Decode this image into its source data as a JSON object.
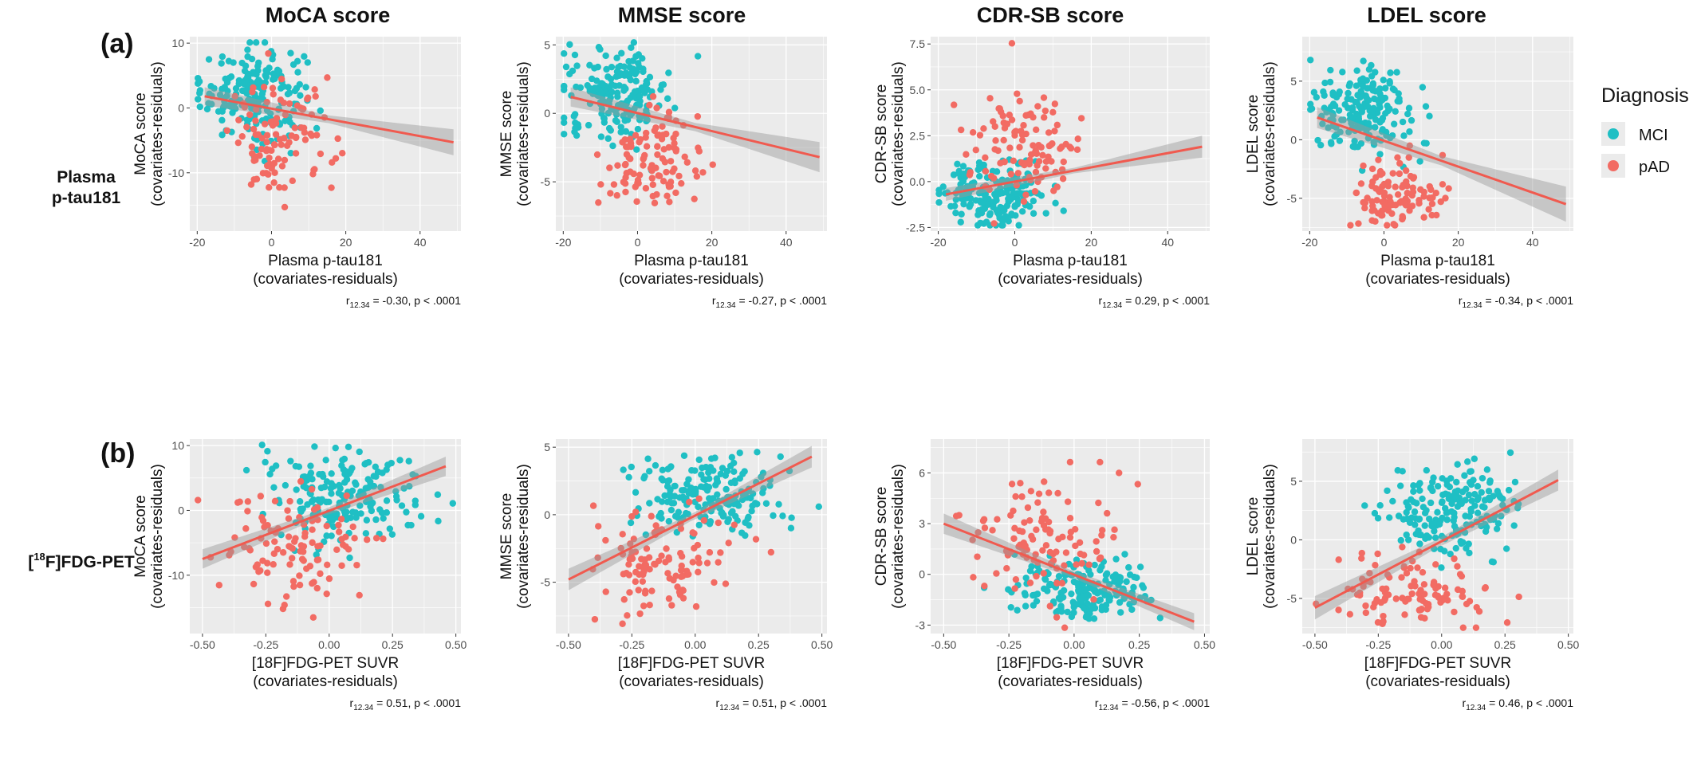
{
  "figure": {
    "panel_a": "(a)",
    "panel_b": "(b)",
    "row_labels": [
      {
        "line1": "Plasma",
        "line2": "p-tau181"
      },
      {
        "line1": "[",
        "sup": "18",
        "line2": "F]FDG-PET"
      }
    ],
    "columns": [
      "MoCA score",
      "MMSE score",
      "CDR-SB score",
      "LDEL score"
    ]
  },
  "legend": {
    "title": "Diagnosis",
    "items": [
      {
        "label": "MCI",
        "color": "#1fbfc4"
      },
      {
        "label": "pAD",
        "color": "#f26b63"
      }
    ]
  },
  "colors": {
    "MCI": "#1fbfc4",
    "pAD": "#f26b63",
    "panel_bg": "#ebebeb",
    "grid": "#ffffff",
    "fit_line": "#f05a4f",
    "ci_band": "#9a9a9a"
  },
  "chart_data": [
    {
      "type": "scatter",
      "row": 0,
      "col": 0,
      "xlabel": [
        "Plasma p-tau181",
        "(covariates-residuals)"
      ],
      "ylabel": [
        "MoCA score",
        "(covariates-residuals)"
      ],
      "xlim": [
        -22,
        51
      ],
      "ylim": [
        -19,
        11
      ],
      "xticks": [
        -20,
        0,
        20,
        40
      ],
      "xtick_labels": [
        "-20",
        "0",
        "20",
        "40"
      ],
      "yticks": [
        -10,
        0,
        10
      ],
      "ytick_labels": [
        "-10",
        "0",
        "10"
      ],
      "fit": {
        "x": [
          -18,
          49
        ],
        "y": [
          1.8,
          -5.3
        ]
      },
      "ci_widths": [
        1.4,
        0.6,
        2.0
      ],
      "stat": {
        "r_sub": "12.34",
        "text": " = -0.30, p < .0001"
      },
      "points": {
        "MCI": {
          "x_center": -5,
          "x_sd": 7,
          "y_center": 2.5,
          "y_sd": 3.5
        },
        "pAD": {
          "x_center": 3,
          "x_sd": 7,
          "y_center": -5,
          "y_sd": 4.5
        }
      }
    },
    {
      "type": "scatter",
      "row": 0,
      "col": 1,
      "xlabel": [
        "Plasma p-tau181",
        "(covariates-residuals)"
      ],
      "ylabel": [
        "MMSE score",
        "(covariates-residuals)"
      ],
      "xlim": [
        -22,
        51
      ],
      "ylim": [
        -8.6,
        5.6
      ],
      "xticks": [
        -20,
        0,
        20,
        40
      ],
      "xtick_labels": [
        "-20",
        "0",
        "20",
        "40"
      ],
      "yticks": [
        -5,
        0,
        5
      ],
      "ytick_labels": [
        "-5",
        "0",
        "5"
      ],
      "fit": {
        "x": [
          -18,
          49
        ],
        "y": [
          1.2,
          -3.2
        ]
      },
      "ci_widths": [
        0.7,
        0.3,
        1.1
      ],
      "stat": {
        "r_sub": "12.34",
        "text": " = -0.27, p < .0001"
      },
      "points": {
        "MCI": {
          "x_center": -5,
          "x_sd": 7,
          "y_center": 1.5,
          "y_sd": 1.6
        },
        "pAD": {
          "x_center": 3,
          "x_sd": 7,
          "y_center": -3.5,
          "y_sd": 2.0
        }
      }
    },
    {
      "type": "scatter",
      "row": 0,
      "col": 2,
      "xlabel": [
        "Plasma p-tau181",
        "(covariates-residuals)"
      ],
      "ylabel": [
        "CDR-SB score",
        "(covariates-residuals)"
      ],
      "xlim": [
        -22,
        51
      ],
      "ylim": [
        -2.7,
        7.9
      ],
      "xticks": [
        -20,
        0,
        20,
        40
      ],
      "xtick_labels": [
        "-20",
        "0",
        "20",
        "40"
      ],
      "yticks": [
        -2.5,
        0,
        2.5,
        5,
        7.5
      ],
      "ytick_labels": [
        "-2.5",
        "0.0",
        "2.5",
        "5.0",
        "7.5"
      ],
      "fit": {
        "x": [
          -18,
          49
        ],
        "y": [
          -0.7,
          1.9
        ]
      },
      "ci_widths": [
        0.35,
        0.15,
        0.6
      ],
      "stat": {
        "r_sub": "12.34",
        "text": " = 0.29, p < .0001"
      },
      "points": {
        "MCI": {
          "x_center": -5,
          "x_sd": 7,
          "y_center": -0.7,
          "y_sd": 0.9
        },
        "pAD": {
          "x_center": 3,
          "x_sd": 7,
          "y_center": 2.0,
          "y_sd": 1.6
        }
      }
    },
    {
      "type": "scatter",
      "row": 0,
      "col": 3,
      "xlabel": [
        "Plasma p-tau181",
        "(covariates-residuals)"
      ],
      "ylabel": [
        "LDEL score",
        "(covariates-residuals)"
      ],
      "xlim": [
        -22,
        51
      ],
      "ylim": [
        -7.8,
        8.8
      ],
      "xticks": [
        -20,
        0,
        20,
        40
      ],
      "xtick_labels": [
        "-20",
        "0",
        "20",
        "40"
      ],
      "yticks": [
        -5,
        0,
        5
      ],
      "ytick_labels": [
        "-5",
        "0",
        "5"
      ],
      "fit": {
        "x": [
          -18,
          49
        ],
        "y": [
          1.9,
          -5.5
        ]
      },
      "ci_widths": [
        0.9,
        0.4,
        1.5
      ],
      "stat": {
        "r_sub": "12.34",
        "text": " = -0.34, p < .0001"
      },
      "points": {
        "MCI": {
          "x_center": -5,
          "x_sd": 7,
          "y_center": 2.5,
          "y_sd": 2.0
        },
        "pAD": {
          "x_center": 3,
          "x_sd": 7,
          "y_center": -4.5,
          "y_sd": 1.5
        }
      }
    },
    {
      "type": "scatter",
      "row": 1,
      "col": 0,
      "xlabel": [
        "[18F]FDG-PET SUVR",
        "(covariates-residuals)"
      ],
      "ylabel": [
        "MoCA score",
        "(covariates-residuals)"
      ],
      "xlim": [
        -0.55,
        0.52
      ],
      "ylim": [
        -19,
        11
      ],
      "xticks": [
        -0.5,
        -0.25,
        0,
        0.25,
        0.5
      ],
      "xtick_labels": [
        "-0.50",
        "-0.25",
        "0.00",
        "0.25",
        "0.50"
      ],
      "yticks": [
        -10,
        0,
        10
      ],
      "ytick_labels": [
        "-10",
        "0",
        "10"
      ],
      "fit": {
        "x": [
          -0.5,
          0.46
        ],
        "y": [
          -7.5,
          6.8
        ]
      },
      "ci_widths": [
        1.5,
        0.5,
        1.5
      ],
      "stat": {
        "r_sub": "12.34",
        "text": " = 0.51, p < .0001"
      },
      "points": {
        "MCI": {
          "x_center": 0.05,
          "x_sd": 0.14,
          "y_center": 2.5,
          "y_sd": 3.5
        },
        "pAD": {
          "x_center": -0.12,
          "x_sd": 0.14,
          "y_center": -5,
          "y_sd": 4.5
        }
      }
    },
    {
      "type": "scatter",
      "row": 1,
      "col": 1,
      "xlabel": [
        "[18F]FDG-PET SUVR",
        "(covariates-residuals)"
      ],
      "ylabel": [
        "MMSE score",
        "(covariates-residuals)"
      ],
      "xlim": [
        -0.55,
        0.52
      ],
      "ylim": [
        -8.8,
        5.6
      ],
      "xticks": [
        -0.5,
        -0.25,
        0,
        0.25,
        0.5
      ],
      "xtick_labels": [
        "-0.50",
        "-0.25",
        "0.00",
        "0.25",
        "0.50"
      ],
      "yticks": [
        -5,
        0,
        5
      ],
      "ytick_labels": [
        "-5",
        "0",
        "5"
      ],
      "fit": {
        "x": [
          -0.5,
          0.46
        ],
        "y": [
          -4.8,
          4.3
        ]
      },
      "ci_widths": [
        0.8,
        0.25,
        0.8
      ],
      "stat": {
        "r_sub": "12.34",
        "text": " = 0.51, p < .0001"
      },
      "points": {
        "MCI": {
          "x_center": 0.05,
          "x_sd": 0.14,
          "y_center": 1.5,
          "y_sd": 1.6
        },
        "pAD": {
          "x_center": -0.12,
          "x_sd": 0.14,
          "y_center": -3.5,
          "y_sd": 2.0
        }
      }
    },
    {
      "type": "scatter",
      "row": 1,
      "col": 2,
      "xlabel": [
        "[18F]FDG-PET SUVR",
        "(covariates-residuals)"
      ],
      "ylabel": [
        "CDR-SB score",
        "(covariates-residuals)"
      ],
      "xlim": [
        -0.55,
        0.52
      ],
      "ylim": [
        -3.5,
        8.0
      ],
      "xticks": [
        -0.5,
        -0.25,
        0,
        0.25,
        0.5
      ],
      "xtick_labels": [
        "-0.50",
        "-0.25",
        "0.00",
        "0.25",
        "0.50"
      ],
      "yticks": [
        -3,
        0,
        3,
        6
      ],
      "ytick_labels": [
        "-3",
        "0",
        "3",
        "6"
      ],
      "fit": {
        "x": [
          -0.5,
          0.46
        ],
        "y": [
          3.0,
          -2.8
        ]
      },
      "ci_widths": [
        0.6,
        0.2,
        0.5
      ],
      "stat": {
        "r_sub": "12.34",
        "text": " = -0.56, p < .0001"
      },
      "points": {
        "MCI": {
          "x_center": 0.05,
          "x_sd": 0.14,
          "y_center": -0.9,
          "y_sd": 0.9
        },
        "pAD": {
          "x_center": -0.12,
          "x_sd": 0.14,
          "y_center": 2.0,
          "y_sd": 1.8
        }
      }
    },
    {
      "type": "scatter",
      "row": 1,
      "col": 3,
      "xlabel": [
        "[18F]FDG-PET SUVR",
        "(covariates-residuals)"
      ],
      "ylabel": [
        "LDEL score",
        "(covariates-residuals)"
      ],
      "xlim": [
        -0.55,
        0.52
      ],
      "ylim": [
        -8.0,
        8.6
      ],
      "xticks": [
        -0.5,
        -0.25,
        0,
        0.25,
        0.5
      ],
      "xtick_labels": [
        "-0.50",
        "-0.25",
        "0.00",
        "0.25",
        "0.50"
      ],
      "yticks": [
        -5,
        0,
        5
      ],
      "ytick_labels": [
        "-5",
        "0",
        "5"
      ],
      "fit": {
        "x": [
          -0.5,
          0.46
        ],
        "y": [
          -5.8,
          5.1
        ]
      },
      "ci_widths": [
        1.0,
        0.35,
        0.9
      ],
      "stat": {
        "r_sub": "12.34",
        "text": " = 0.46, p < .0001"
      },
      "points": {
        "MCI": {
          "x_center": 0.05,
          "x_sd": 0.14,
          "y_center": 2.5,
          "y_sd": 2.0
        },
        "pAD": {
          "x_center": -0.12,
          "x_sd": 0.14,
          "y_center": -4.5,
          "y_sd": 1.5
        }
      }
    }
  ]
}
